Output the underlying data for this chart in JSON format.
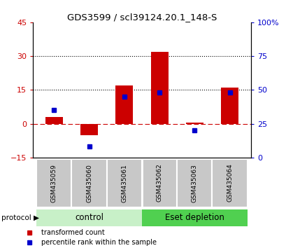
{
  "title": "GDS3599 / scl39124.20.1_148-S",
  "samples": [
    "GSM435059",
    "GSM435060",
    "GSM435061",
    "GSM435062",
    "GSM435063",
    "GSM435064"
  ],
  "red_values": [
    3,
    -5,
    17,
    32,
    0.5,
    16
  ],
  "blue_values": [
    35,
    8,
    45,
    48,
    20,
    48
  ],
  "left_ylim": [
    -15,
    45
  ],
  "left_yticks": [
    -15,
    0,
    15,
    30,
    45
  ],
  "right_ylim": [
    0,
    100
  ],
  "right_yticks": [
    0,
    25,
    50,
    75,
    100
  ],
  "right_yticklabels": [
    "0",
    "25",
    "50",
    "75",
    "100%"
  ],
  "hlines": [
    15,
    30
  ],
  "control_label": "control",
  "eset_label": "Eset depletion",
  "control_color": "#c8f0c8",
  "eset_color": "#50d050",
  "sample_box_color": "#c8c8c8",
  "red_color": "#cc0000",
  "blue_color": "#0000cc",
  "legend_red_label": "transformed count",
  "legend_blue_label": "percentile rank within the sample",
  "bar_width": 0.5
}
